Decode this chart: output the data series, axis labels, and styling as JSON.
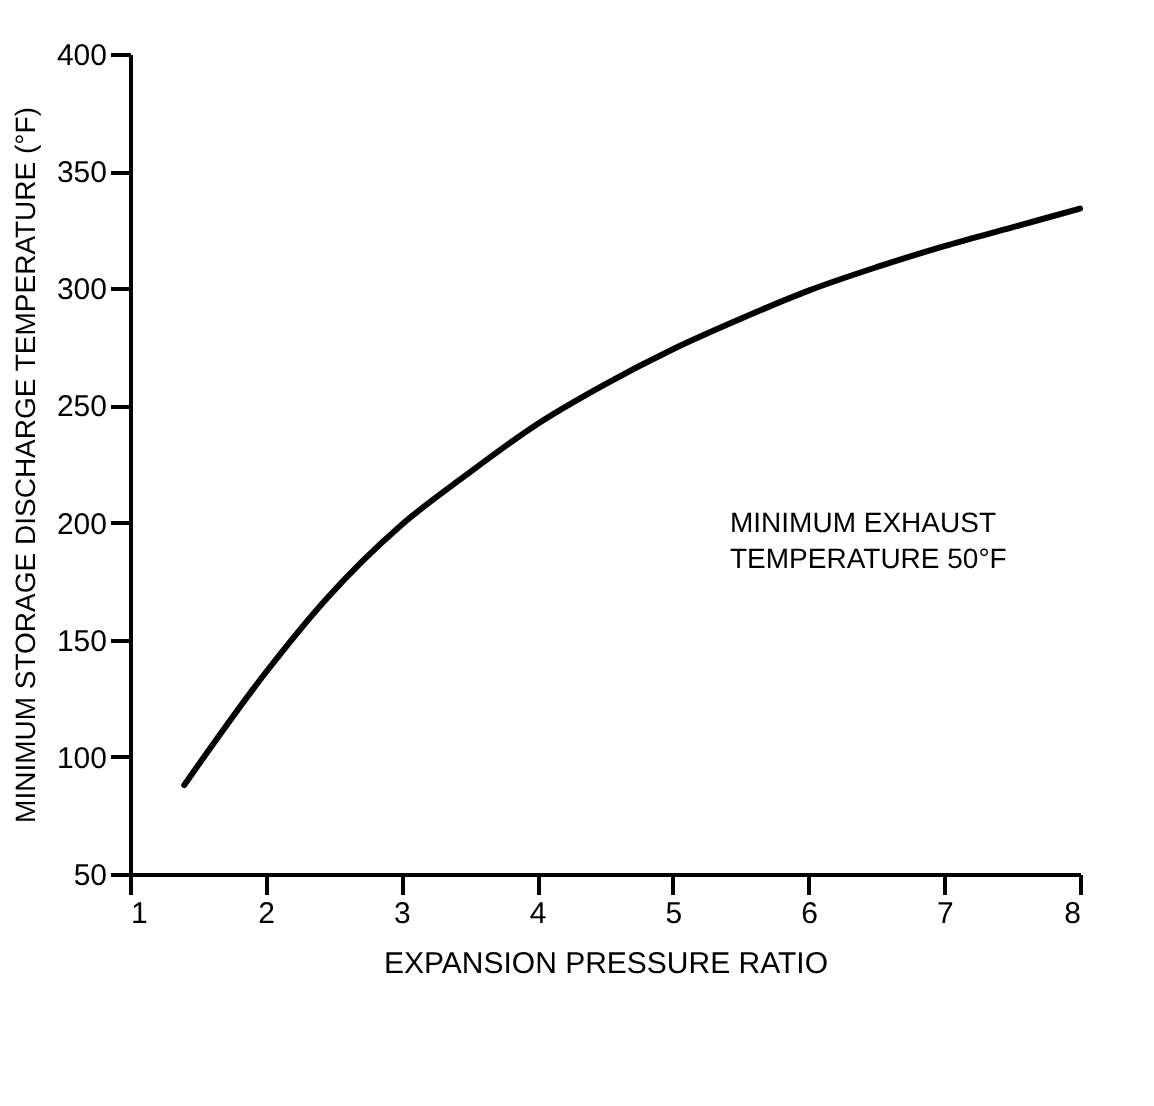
{
  "chart_data": {
    "type": "line",
    "xlabel": "EXPANSION PRESSURE RATIO",
    "ylabel": "MINIMUM STORAGE DISCHARGE TEMPERATURE (°F)",
    "x": [
      1.4,
      2.0,
      2.44,
      3.0,
      3.47,
      4.0,
      4.5,
      5.0,
      5.5,
      6.0,
      6.5,
      7.0,
      7.5,
      8.0
    ],
    "series": [
      {
        "color": "#000000",
        "values": [
          88,
          136,
          167,
          199,
          220,
          242,
          259,
          274,
          287,
          299,
          309,
          318,
          326,
          334
        ]
      }
    ],
    "xlim": [
      1,
      8
    ],
    "xticks": [
      1,
      2,
      3,
      4,
      5,
      6,
      7,
      8
    ],
    "ylim": [
      50,
      400
    ],
    "yticks": [
      50,
      100,
      150,
      200,
      250,
      300,
      350,
      400
    ],
    "grid": false,
    "marker": "none",
    "line_style": "solid",
    "annotations": [
      "MINIMUM EXHAUST\nTEMPERATURE 50°F"
    ]
  }
}
